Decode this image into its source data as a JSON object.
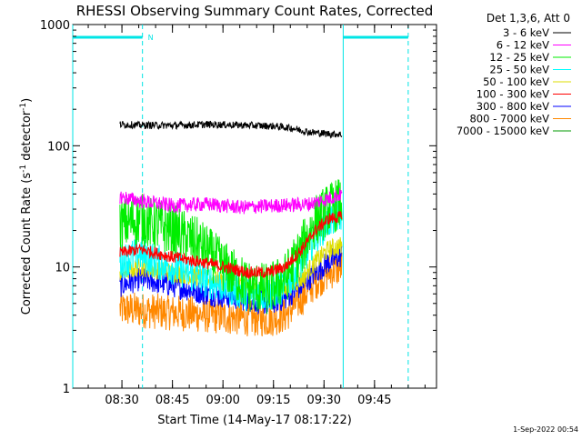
{
  "chart_data": {
    "type": "line",
    "title": "RHESSI Observing Summary Count Rates, Corrected",
    "ylabel": "Corrected Count Rate (s",
    "ylabel_sup1": "-1",
    "ylabel_mid": " detector",
    "ylabel_sup2": "-1",
    "ylabel_end": ")",
    "xlabel": "Start Time (14-May-17 08:17:22)",
    "x_unit": "minutes after 08:17:22",
    "y_scale": "log",
    "ylim": [
      1,
      1000
    ],
    "xlim": [
      0,
      108
    ],
    "y_ticks": [
      {
        "value": 1,
        "label": "1"
      },
      {
        "value": 10,
        "label": "10"
      },
      {
        "value": 100,
        "label": "100"
      },
      {
        "value": 1000,
        "label": "1000"
      }
    ],
    "x_ticks": [
      {
        "value": 14.6,
        "label": "08:30"
      },
      {
        "value": 29.6,
        "label": "08:45"
      },
      {
        "value": 44.6,
        "label": "09:00"
      },
      {
        "value": 59.6,
        "label": "09:15"
      },
      {
        "value": 74.6,
        "label": "09:30"
      },
      {
        "value": 89.6,
        "label": "09:45"
      }
    ],
    "legend_title": "Det 1,3,6, Att 0",
    "legend_position": "right",
    "annotation": "N",
    "timestamp": "1-Sep-2022 00:54",
    "series": [
      {
        "name": "3 - 6 keV",
        "color": "#000000",
        "x": [
          14,
          20,
          30,
          40,
          50,
          60,
          65,
          70,
          75,
          80
        ],
        "values": [
          150,
          148,
          147,
          150,
          148,
          145,
          140,
          130,
          126,
          124
        ],
        "noise": 0.03
      },
      {
        "name": "6 - 12 keV",
        "color": "#ff00ff",
        "x": [
          14,
          20,
          30,
          40,
          50,
          60,
          70,
          75,
          80
        ],
        "values": [
          38,
          35,
          32,
          33,
          31,
          32,
          33,
          36,
          40
        ],
        "noise": 0.06
      },
      {
        "name": "12 - 25 keV",
        "color": "#00ee00",
        "x": [
          14,
          20,
          25,
          30,
          38,
          45,
          52,
          58,
          63,
          68,
          72,
          76,
          80
        ],
        "values": [
          22,
          25,
          22,
          20,
          15,
          10,
          7,
          6.5,
          8,
          14,
          24,
          30,
          34
        ],
        "noise": 0.22
      },
      {
        "name": "25 - 50 keV",
        "color": "#00ffff",
        "x": [
          14,
          20,
          25,
          30,
          38,
          45,
          52,
          58,
          63,
          68,
          72,
          76,
          80
        ],
        "values": [
          11,
          13,
          11,
          10,
          8,
          7,
          6,
          6,
          7,
          11,
          18,
          24,
          28
        ],
        "noise": 0.15
      },
      {
        "name": "50 - 100 keV",
        "color": "#dddd00",
        "x": [
          14,
          20,
          30,
          40,
          50,
          58,
          63,
          68,
          72,
          76,
          80
        ],
        "values": [
          9,
          10,
          9,
          8,
          7,
          6,
          6.5,
          8,
          11,
          14,
          15
        ],
        "noise": 0.08
      },
      {
        "name": "100 - 300 keV",
        "color": "#ff0000",
        "x": [
          14,
          20,
          25,
          30,
          38,
          45,
          52,
          58,
          63,
          68,
          72,
          76,
          80
        ],
        "values": [
          13,
          14,
          13,
          12,
          11,
          10,
          9,
          9,
          10,
          14,
          20,
          25,
          26
        ],
        "noise": 0.05
      },
      {
        "name": "300 - 800 keV",
        "color": "#0000ff",
        "x": [
          14,
          20,
          30,
          40,
          50,
          58,
          63,
          68,
          72,
          76,
          80
        ],
        "values": [
          7,
          8,
          7,
          6,
          5.5,
          5,
          5.5,
          7,
          9,
          11,
          12.5
        ],
        "noise": 0.1
      },
      {
        "name": "800 - 7000 keV",
        "color": "#ff8800",
        "x": [
          14,
          20,
          30,
          40,
          50,
          58,
          63,
          68,
          72,
          76,
          80
        ],
        "values": [
          4.5,
          4.4,
          4.2,
          4.0,
          3.8,
          3.7,
          4.0,
          5.5,
          7.5,
          9,
          10
        ],
        "noise": 0.15
      },
      {
        "name": "7000 - 15000 keV",
        "color": "#009900",
        "x": [],
        "values": []
      }
    ],
    "attenuator_bars": [
      [
        0,
        20.7
      ],
      [
        80.3,
        99.6
      ]
    ],
    "night_marks_solid": [
      0,
      80.3
    ],
    "night_marks_dashed": [
      20.7,
      99.6
    ]
  }
}
